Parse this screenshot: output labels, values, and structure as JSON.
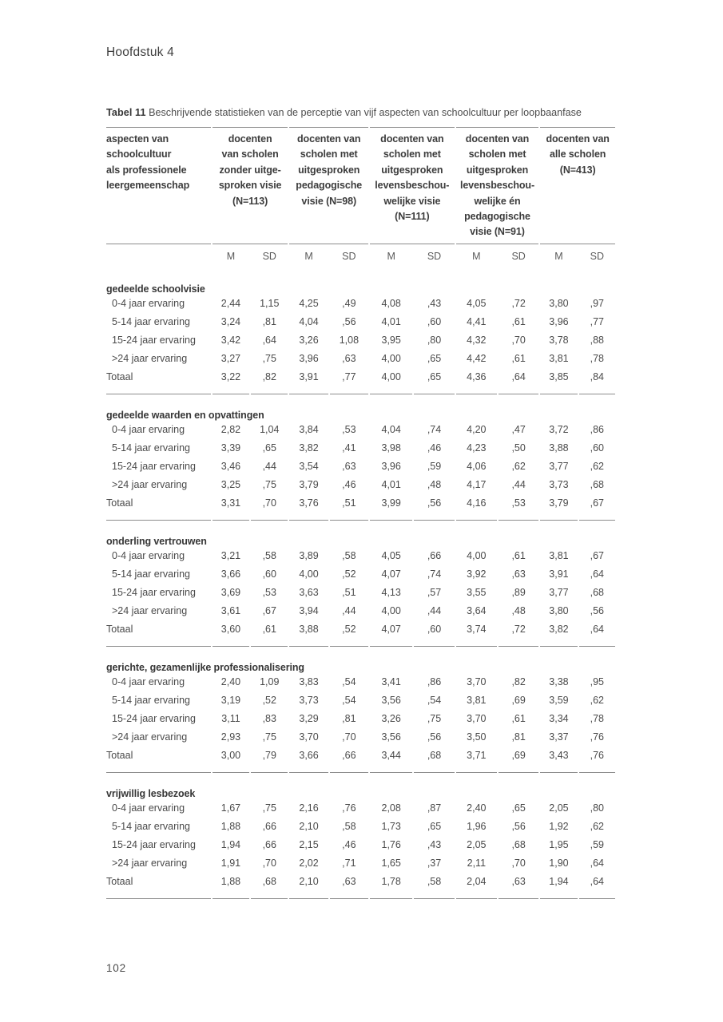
{
  "page": {
    "chapter_header": "Hoofdstuk 4",
    "page_number": "102"
  },
  "caption": {
    "label": "Tabel 11",
    "text": " Beschrijvende statistieken van de perceptie van vijf aspecten van schoolcultuur per loopbaanfase"
  },
  "table": {
    "row_header": [
      "aspecten van",
      "schoolcultuur",
      "als professionele",
      "leergemeenschap"
    ],
    "groups": [
      {
        "lines": [
          "docenten",
          "van scholen",
          "zonder uitge-",
          "sproken visie",
          "(N=113)"
        ]
      },
      {
        "lines": [
          "docenten van",
          "scholen met",
          "uitgesproken",
          "pedagogische",
          "visie (N=98)"
        ]
      },
      {
        "lines": [
          "docenten van",
          "scholen met",
          "uitgesproken",
          "levensbeschou-",
          "welijke visie",
          "(N=111)"
        ]
      },
      {
        "lines": [
          "docenten van",
          "scholen met",
          "uitgesproken",
          "levensbeschou-",
          "welijke én",
          "pedagogische",
          "visie (N=91)"
        ]
      },
      {
        "lines": [
          "docenten van",
          "alle scholen",
          "(N=413)"
        ]
      }
    ],
    "stat_labels": [
      "M",
      "SD"
    ],
    "sections": [
      {
        "title": "gedeelde schoolvisie",
        "rows": [
          {
            "label": "0-4 jaar ervaring",
            "indent": true,
            "values": [
              "2,44",
              "1,15",
              "4,25",
              ",49",
              "4,08",
              ",43",
              "4,05",
              ",72",
              "3,80",
              ",97"
            ]
          },
          {
            "label": "5-14 jaar ervaring",
            "indent": true,
            "values": [
              "3,24",
              ",81",
              "4,04",
              ",56",
              "4,01",
              ",60",
              "4,41",
              ",61",
              "3,96",
              ",77"
            ]
          },
          {
            "label": "15-24 jaar ervaring",
            "indent": true,
            "values": [
              "3,42",
              ",64",
              "3,26",
              "1,08",
              "3,95",
              ",80",
              "4,32",
              ",70",
              "3,78",
              ",88"
            ]
          },
          {
            "label": ">24 jaar ervaring",
            "indent": true,
            "values": [
              "3,27",
              ",75",
              "3,96",
              ",63",
              "4,00",
              ",65",
              "4,42",
              ",61",
              "3,81",
              ",78"
            ]
          },
          {
            "label": "Totaal",
            "indent": false,
            "values": [
              "3,22",
              ",82",
              "3,91",
              ",77",
              "4,00",
              ",65",
              "4,36",
              ",64",
              "3,85",
              ",84"
            ]
          }
        ]
      },
      {
        "title": "gedeelde waarden en opvattingen",
        "rows": [
          {
            "label": "0-4 jaar ervaring",
            "indent": true,
            "values": [
              "2,82",
              "1,04",
              "3,84",
              ",53",
              "4,04",
              ",74",
              "4,20",
              ",47",
              "3,72",
              ",86"
            ]
          },
          {
            "label": "5-14 jaar ervaring",
            "indent": true,
            "values": [
              "3,39",
              ",65",
              "3,82",
              ",41",
              "3,98",
              ",46",
              "4,23",
              ",50",
              "3,88",
              ",60"
            ]
          },
          {
            "label": "15-24 jaar ervaring",
            "indent": true,
            "values": [
              "3,46",
              ",44",
              "3,54",
              ",63",
              "3,96",
              ",59",
              "4,06",
              ",62",
              "3,77",
              ",62"
            ]
          },
          {
            "label": ">24 jaar ervaring",
            "indent": true,
            "values": [
              "3,25",
              ",75",
              "3,79",
              ",46",
              "4,01",
              ",48",
              "4,17",
              ",44",
              "3,73",
              ",68"
            ]
          },
          {
            "label": "Totaal",
            "indent": false,
            "values": [
              "3,31",
              ",70",
              "3,76",
              ",51",
              "3,99",
              ",56",
              "4,16",
              ",53",
              "3,79",
              ",67"
            ]
          }
        ]
      },
      {
        "title": "onderling vertrouwen",
        "rows": [
          {
            "label": "0-4 jaar ervaring",
            "indent": true,
            "values": [
              "3,21",
              ",58",
              "3,89",
              ",58",
              "4,05",
              ",66",
              "4,00",
              ",61",
              "3,81",
              ",67"
            ]
          },
          {
            "label": "5-14 jaar ervaring",
            "indent": true,
            "values": [
              "3,66",
              ",60",
              "4,00",
              ",52",
              "4,07",
              ",74",
              "3,92",
              ",63",
              "3,91",
              ",64"
            ]
          },
          {
            "label": "15-24 jaar ervaring",
            "indent": true,
            "values": [
              "3,69",
              ",53",
              "3,63",
              ",51",
              "4,13",
              ",57",
              "3,55",
              ",89",
              "3,77",
              ",68"
            ]
          },
          {
            "label": ">24 jaar ervaring",
            "indent": true,
            "values": [
              "3,61",
              ",67",
              "3,94",
              ",44",
              "4,00",
              ",44",
              "3,64",
              ",48",
              "3,80",
              ",56"
            ]
          },
          {
            "label": "Totaal",
            "indent": false,
            "values": [
              "3,60",
              ",61",
              "3,88",
              ",52",
              "4,07",
              ",60",
              "3,74",
              ",72",
              "3,82",
              ",64"
            ]
          }
        ]
      },
      {
        "title": "gerichte, gezamenlijke professionalisering",
        "rows": [
          {
            "label": "0-4 jaar ervaring",
            "indent": true,
            "values": [
              "2,40",
              "1,09",
              "3,83",
              ",54",
              "3,41",
              ",86",
              "3,70",
              ",82",
              "3,38",
              ",95"
            ]
          },
          {
            "label": "5-14 jaar ervaring",
            "indent": true,
            "values": [
              "3,19",
              ",52",
              "3,73",
              ",54",
              "3,56",
              ",54",
              "3,81",
              ",69",
              "3,59",
              ",62"
            ]
          },
          {
            "label": "15-24 jaar ervaring",
            "indent": true,
            "values": [
              "3,11",
              ",83",
              "3,29",
              ",81",
              "3,26",
              ",75",
              "3,70",
              ",61",
              "3,34",
              ",78"
            ]
          },
          {
            "label": ">24 jaar ervaring",
            "indent": true,
            "values": [
              "2,93",
              ",75",
              "3,70",
              ",70",
              "3,56",
              ",56",
              "3,50",
              ",81",
              "3,37",
              ",76"
            ]
          },
          {
            "label": "Totaal",
            "indent": false,
            "values": [
              "3,00",
              ",79",
              "3,66",
              ",66",
              "3,44",
              ",68",
              "3,71",
              ",69",
              "3,43",
              ",76"
            ]
          }
        ]
      },
      {
        "title": "vrijwillig lesbezoek",
        "rows": [
          {
            "label": "0-4 jaar ervaring",
            "indent": true,
            "values": [
              "1,67",
              ",75",
              "2,16",
              ",76",
              "2,08",
              ",87",
              "2,40",
              ",65",
              "2,05",
              ",80"
            ]
          },
          {
            "label": "5-14 jaar ervaring",
            "indent": true,
            "values": [
              "1,88",
              ",66",
              "2,10",
              ",58",
              "1,73",
              ",65",
              "1,96",
              ",56",
              "1,92",
              ",62"
            ]
          },
          {
            "label": "15-24 jaar ervaring",
            "indent": true,
            "values": [
              "1,94",
              ",66",
              "2,15",
              ",46",
              "1,76",
              ",43",
              "2,05",
              ",68",
              "1,95",
              ",59"
            ]
          },
          {
            "label": ">24 jaar ervaring",
            "indent": true,
            "values": [
              "1,91",
              ",70",
              "2,02",
              ",71",
              "1,65",
              ",37",
              "2,11",
              ",70",
              "1,90",
              ",64"
            ]
          },
          {
            "label": "Totaal",
            "indent": false,
            "values": [
              "1,88",
              ",68",
              "2,10",
              ",63",
              "1,78",
              ",58",
              "2,04",
              ",63",
              "1,94",
              ",64"
            ]
          }
        ]
      }
    ]
  }
}
